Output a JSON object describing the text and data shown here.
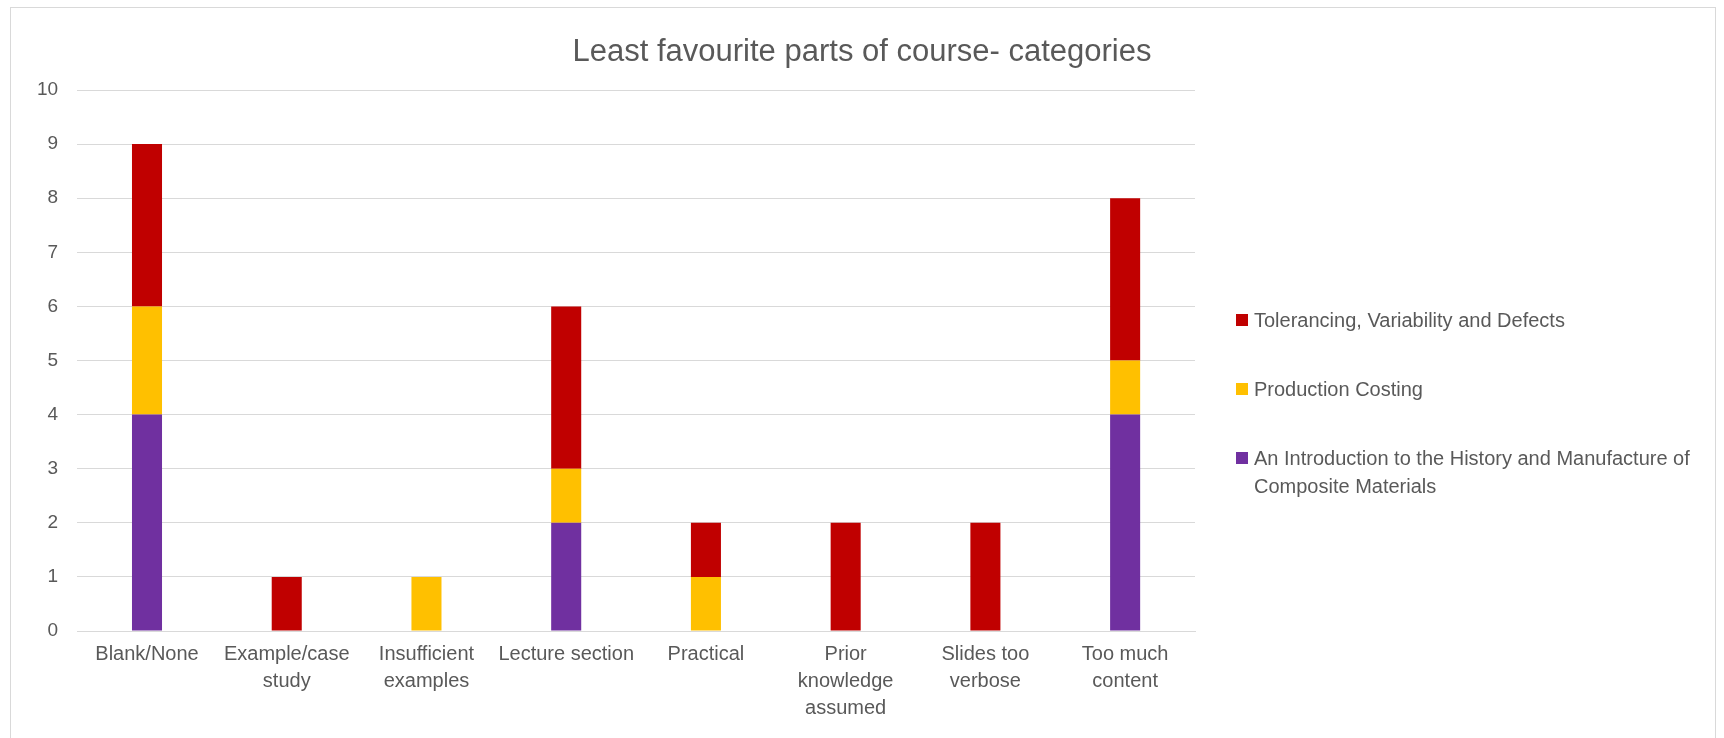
{
  "chart_data": {
    "type": "bar",
    "title": "Least favourite parts of course- categories",
    "categories": [
      "Blank/None",
      "Example/case study",
      "Insufficient examples",
      "Lecture section",
      "Practical",
      "Prior knowledge assumed",
      "Slides too verbose",
      "Too much content"
    ],
    "series": [
      {
        "name": "An Introduction to the History and Manufacture of Composite Materials",
        "color": "#7030a0",
        "values": [
          4,
          0,
          0,
          2,
          0,
          0,
          0,
          4
        ]
      },
      {
        "name": "Production Costing",
        "color": "#ffc000",
        "values": [
          2,
          0,
          1,
          1,
          1,
          0,
          0,
          1
        ]
      },
      {
        "name": "Tolerancing, Variability and Defects",
        "color": "#c00000",
        "values": [
          3,
          1,
          0,
          3,
          1,
          2,
          2,
          3
        ]
      }
    ],
    "stacked": true,
    "ylim": [
      0,
      10
    ],
    "yticks": [
      0,
      1,
      2,
      3,
      4,
      5,
      6,
      7,
      8,
      9,
      10
    ],
    "grid": "y",
    "legend": "right"
  }
}
